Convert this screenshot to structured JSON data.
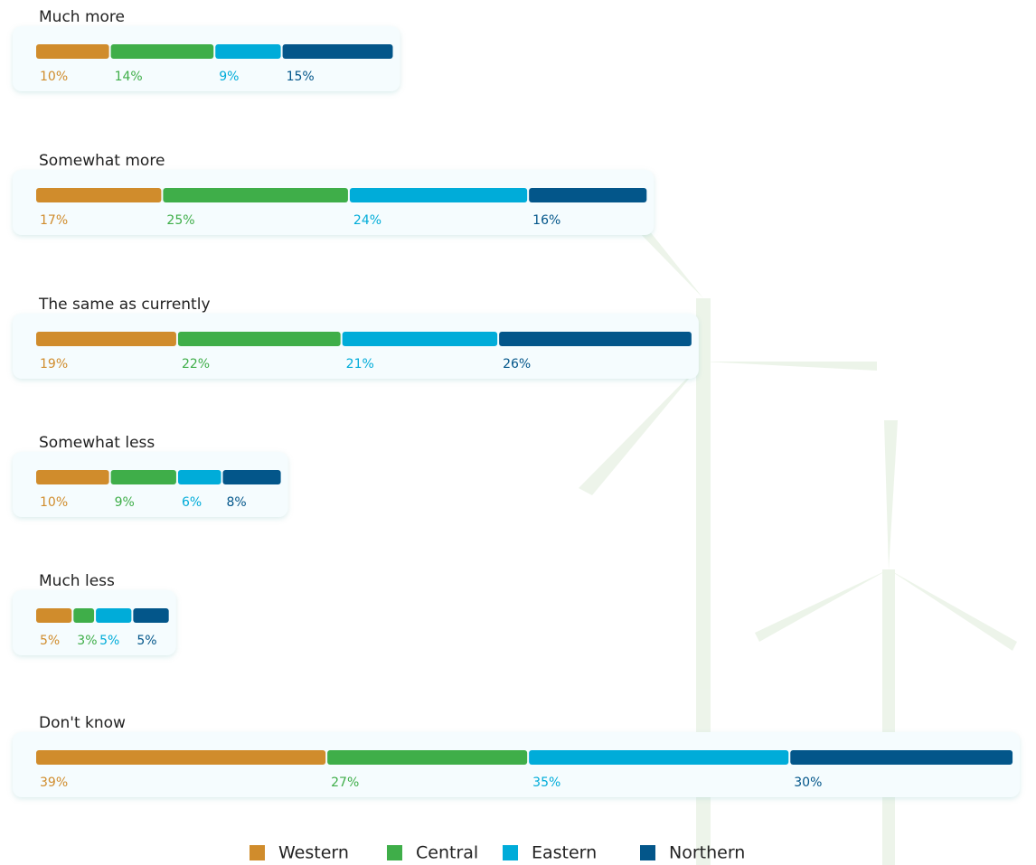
{
  "chart_data": {
    "type": "stacked-bar",
    "categories": [
      "Much more",
      "Somewhat more",
      "The same as currently",
      "Somewhat less",
      "Much less",
      "Don't know"
    ],
    "series": [
      {
        "name": "Western",
        "color": "#d08c2c",
        "values": [
          10,
          17,
          19,
          10,
          5,
          39
        ],
        "value_labels": [
          "10%",
          "17%",
          "19%",
          "10%",
          "5%",
          "39%"
        ]
      },
      {
        "name": "Central",
        "color": "#3fae49",
        "values": [
          14,
          25,
          22,
          9,
          3,
          27
        ],
        "value_labels": [
          "14%",
          "25%",
          "22%",
          "9%",
          "3%",
          "27%"
        ]
      },
      {
        "name": "Eastern",
        "color": "#00acd9",
        "values": [
          9,
          24,
          21,
          6,
          5,
          35
        ],
        "value_labels": [
          "9%",
          "24%",
          "21%",
          "6%",
          "5%",
          "35%"
        ]
      },
      {
        "name": "Northern",
        "color": "#03568a",
        "values": [
          15,
          16,
          26,
          8,
          5,
          30
        ],
        "value_labels": [
          "15%",
          "16%",
          "26%",
          "8%",
          "5%",
          "30%"
        ]
      }
    ]
  }
}
